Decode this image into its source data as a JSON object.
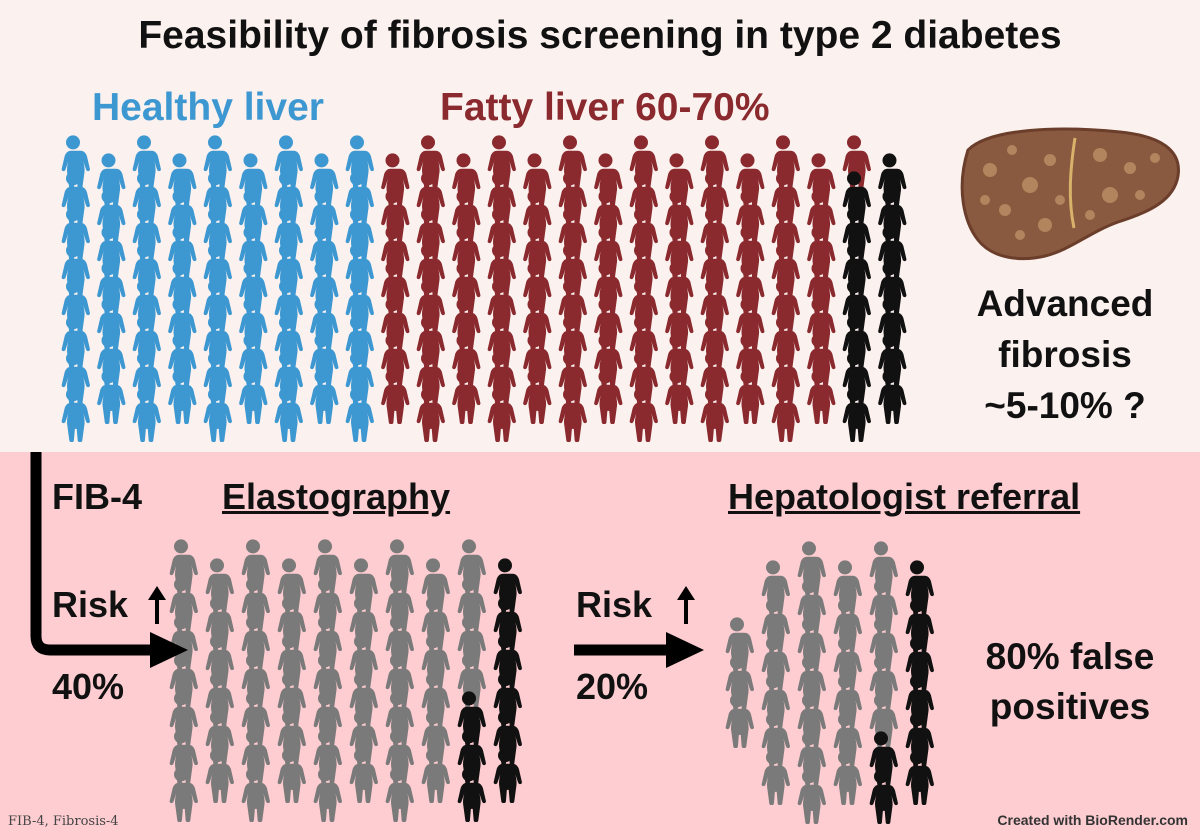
{
  "title": "Feasibility of fibrosis screening in type 2 diabetes",
  "labels": {
    "healthy": "Healthy liver",
    "fatty": "Fatty liver 60-70%",
    "advanced_line1": "Advanced",
    "advanced_line2": "fibrosis",
    "advanced_line3": "~5-10% ?",
    "fib4": "FIB-4",
    "elastography": "Elastography",
    "hepatologist": "Hepatologist referral",
    "risk_step1": "Risk",
    "pct_step1": "40%",
    "risk_step2": "Risk",
    "pct_step2": "20%",
    "false_pos_line1": "80% false",
    "false_pos_line2": "positives"
  },
  "footer": {
    "abbrev": "FIB-4, Fibrosis-4",
    "credit": "Created with BioRender.com"
  },
  "colors": {
    "healthy": "#3d98d2",
    "fatty": "#8a2a2e",
    "fibrosis": "#111111",
    "other": "#7a7a7a",
    "top_bg": "#fbf1ee",
    "bottom_bg": "#fdcdd1"
  },
  "icons": {
    "up_arrow": "arrow-up-icon",
    "person": "person-icon",
    "liver": "liver-icon"
  }
}
